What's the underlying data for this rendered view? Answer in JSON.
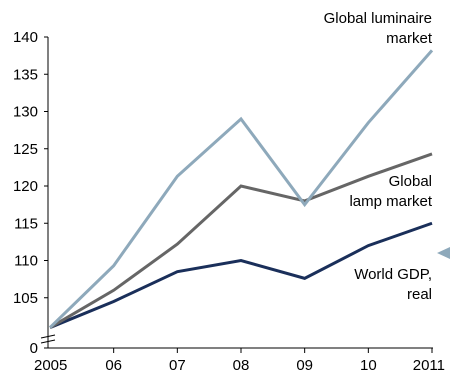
{
  "chart_data": {
    "type": "line",
    "title": "",
    "xlabel": "",
    "ylabel": "",
    "x": [
      "2005",
      "06",
      "07",
      "08",
      "09",
      "10",
      "2011"
    ],
    "y_ticks": [
      "0",
      "105",
      "110",
      "115",
      "120",
      "125",
      "130",
      "135",
      "140"
    ],
    "ylim": [
      100,
      140
    ],
    "axis_break": true,
    "grid": false,
    "series": [
      {
        "name": "Global luminaire market",
        "label_lines": [
          "Global luminaire",
          "market"
        ],
        "color": "#8ea9bb",
        "values": [
          101,
          109.3,
          121.3,
          129,
          117.5,
          128.5,
          138.2
        ]
      },
      {
        "name": "Global lamp market",
        "label_lines": [
          "Global",
          "lamp market"
        ],
        "color": "#666666",
        "values": [
          101,
          106,
          112.2,
          120,
          118,
          121.3,
          124.3
        ]
      },
      {
        "name": "World GDP, real",
        "label_lines": [
          "World GDP,",
          "real"
        ],
        "color": "#1a2f5a",
        "values": [
          101,
          104.5,
          108.5,
          110,
          107.6,
          112,
          115
        ]
      }
    ],
    "marker_color": "#8ea9bb"
  }
}
